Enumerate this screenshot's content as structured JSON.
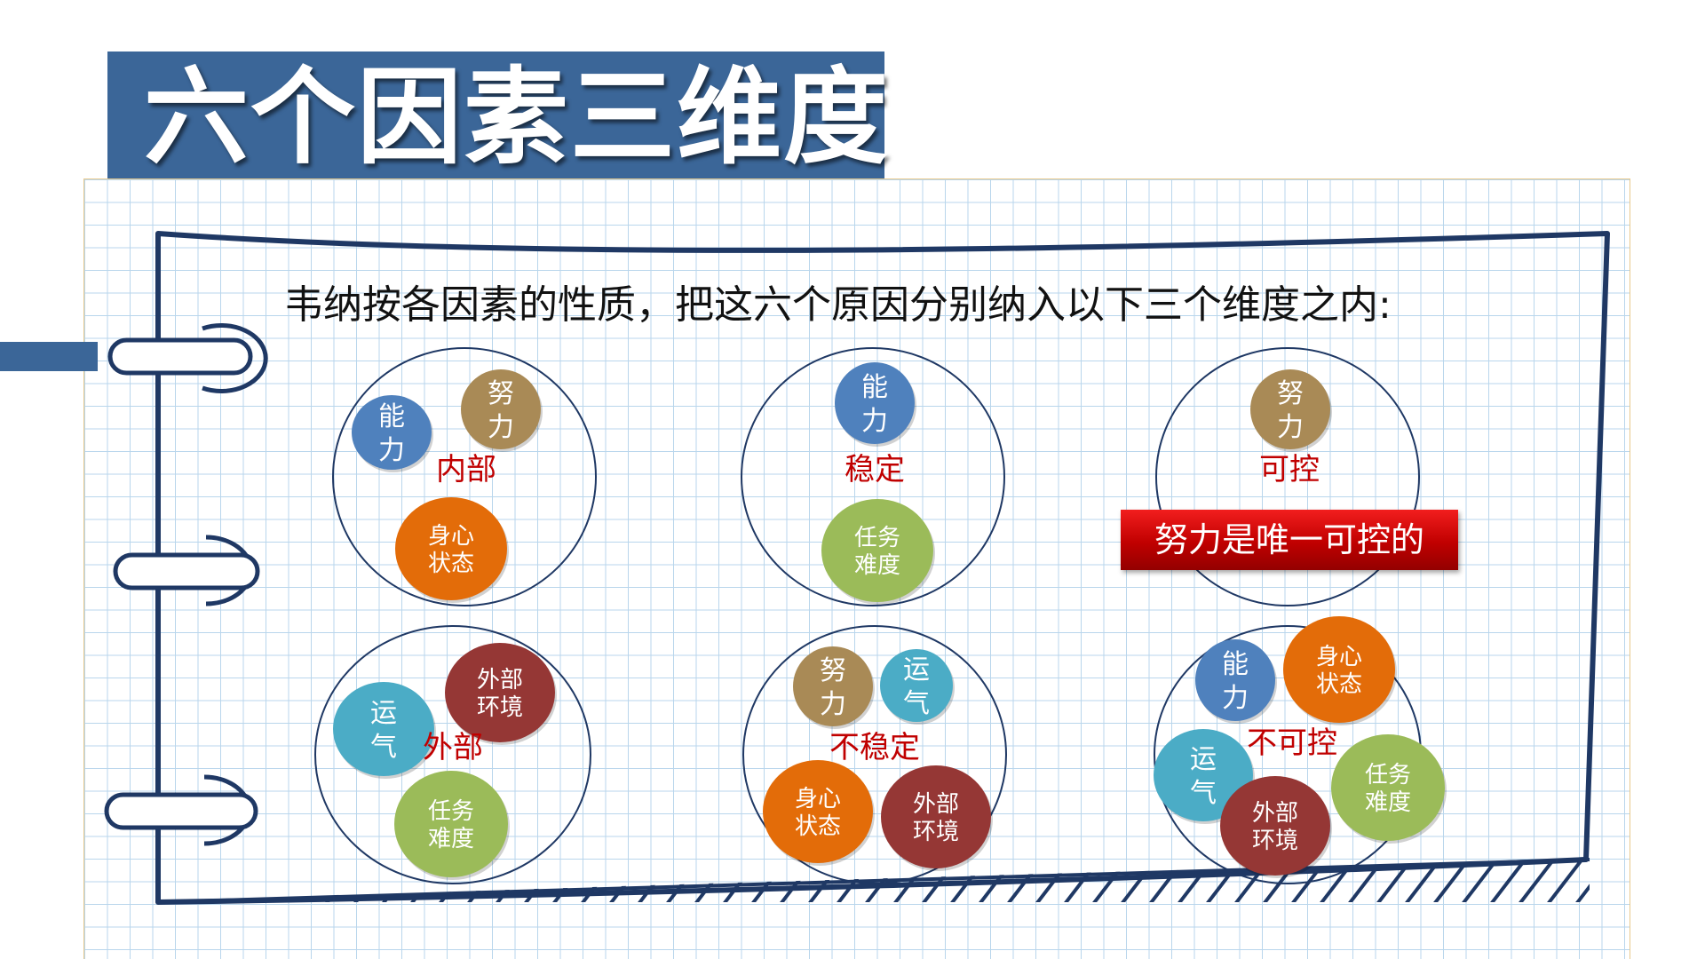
{
  "title": "六个因素三维度",
  "intro": "韦纳按各因素的性质，把这六个原因分别纳入以下三个维度之内:",
  "highlight": "努力是唯一可控的",
  "colors": {
    "title_bg": "#3b6698",
    "frame": "#1f3864",
    "dimension_label": "#c00000",
    "ability": "#4f81bd",
    "effort": "#a98a56",
    "mood": "#e36c09",
    "difficulty": "#9bbb59",
    "luck": "#4bacc6",
    "environment": "#953735"
  },
  "factors": {
    "ability": [
      "能",
      "力"
    ],
    "effort": [
      "努",
      "力"
    ],
    "mood": [
      "身心",
      "状态"
    ],
    "difficulty": [
      "任务",
      "难度"
    ],
    "luck": [
      "运",
      "气"
    ],
    "environment": [
      "外部",
      "环境"
    ]
  },
  "dimensions": [
    {
      "label": "内部",
      "factors": [
        "ability",
        "effort",
        "mood"
      ]
    },
    {
      "label": "稳定",
      "factors": [
        "ability",
        "difficulty"
      ]
    },
    {
      "label": "可控",
      "factors": [
        "effort"
      ]
    },
    {
      "label": "外部",
      "factors": [
        "luck",
        "environment",
        "difficulty"
      ]
    },
    {
      "label": "不稳定",
      "factors": [
        "effort",
        "luck",
        "mood",
        "environment"
      ]
    },
    {
      "label": "不可控",
      "factors": [
        "ability",
        "mood",
        "luck",
        "difficulty",
        "environment"
      ]
    }
  ]
}
